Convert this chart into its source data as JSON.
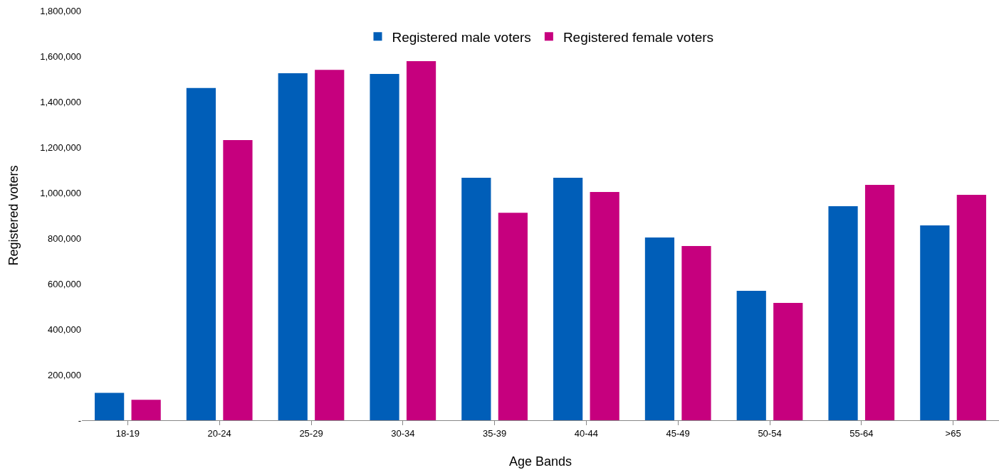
{
  "chart_data": {
    "type": "bar",
    "xlabel": "Age Bands",
    "ylabel": "Registered voters",
    "categories": [
      "18-19",
      "20-24",
      "25-29",
      "30-34",
      "35-39",
      "40-44",
      "45-49",
      "50-54",
      "55-64",
      ">65"
    ],
    "series": [
      {
        "name": "Registered male voters",
        "color": "#005eb8",
        "values": [
          120000,
          1460000,
          1525000,
          1522000,
          1066000,
          1066000,
          803000,
          569000,
          941000,
          856000
        ]
      },
      {
        "name": "Registered female voters",
        "color": "#c6007e",
        "values": [
          90000,
          1231000,
          1540000,
          1578000,
          912000,
          1003000,
          766000,
          516000,
          1034000,
          991000
        ]
      }
    ],
    "ylim": [
      0,
      1800000
    ],
    "yticks": [
      {
        "value": 0,
        "label": "-"
      },
      {
        "value": 200000,
        "label": "200,000"
      },
      {
        "value": 400000,
        "label": "400,000"
      },
      {
        "value": 600000,
        "label": "600,000"
      },
      {
        "value": 800000,
        "label": "800,000"
      },
      {
        "value": 1000000,
        "label": "1,000,000"
      },
      {
        "value": 1200000,
        "label": "1,200,000"
      },
      {
        "value": 1400000,
        "label": "1,400,000"
      },
      {
        "value": 1600000,
        "label": "1,600,000"
      },
      {
        "value": 1800000,
        "label": "1,800,000"
      }
    ],
    "grid": false,
    "legend": "top"
  }
}
